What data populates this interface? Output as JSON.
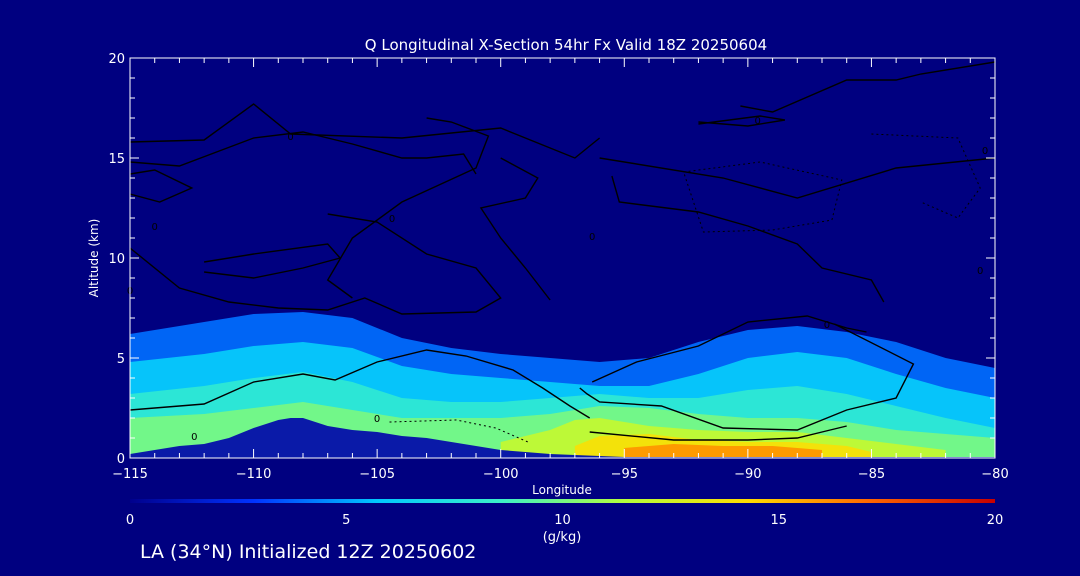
{
  "chart_data": {
    "type": "heatmap",
    "title": "Q Longitudinal X-Section 54hr  Fx Valid 18Z 20250604",
    "xlabel": "Longitude",
    "ylabel": "Altitude (km)",
    "xlim": [
      -115,
      -80
    ],
    "ylim": [
      0,
      20
    ],
    "x_ticks": [
      -115,
      -110,
      -105,
      -100,
      -95,
      -90,
      -85,
      -80
    ],
    "x_tick_labels": [
      "−115",
      "−110",
      "−105",
      "−100",
      "−95",
      "−90",
      "−85",
      "−80"
    ],
    "y_ticks": [
      0,
      5,
      10,
      15,
      20
    ],
    "y_tick_labels": [
      "0",
      "5",
      "10",
      "15",
      "20"
    ],
    "colorbar": {
      "label": "(g/kg)",
      "range": [
        0,
        20
      ],
      "ticks": [
        0,
        5,
        10,
        15,
        20
      ],
      "tick_labels": [
        "0",
        "5",
        "10",
        "15",
        "20"
      ],
      "colormap": [
        "#00008c",
        "#0032ff",
        "#00c8ff",
        "#3cf0c8",
        "#b4ff3c",
        "#ffdc00",
        "#ff6400",
        "#c80000"
      ]
    },
    "terrain": {
      "color": "#0a1aa8",
      "longitude": [
        -115,
        -114,
        -113,
        -112,
        -111,
        -110,
        -109,
        -108.5,
        -108,
        -107,
        -106,
        -105,
        -104,
        -103,
        -102,
        -101,
        -100,
        -99,
        -98,
        -97,
        -96,
        -95,
        -90,
        -85,
        -80
      ],
      "altitude_km": [
        0.2,
        0.4,
        0.6,
        0.7,
        1.0,
        1.5,
        1.9,
        2.0,
        2.0,
        1.6,
        1.4,
        1.3,
        1.1,
        1.0,
        0.8,
        0.6,
        0.4,
        0.3,
        0.2,
        0.15,
        0.1,
        0.05,
        0.05,
        0.05,
        0.05
      ]
    },
    "moisture_layers": [
      {
        "q_gkg": 4,
        "longitude": [
          -115,
          -112,
          -110,
          -108,
          -106,
          -104,
          -102,
          -100,
          -98,
          -96,
          -94,
          -92,
          -90,
          -88,
          -86,
          -84,
          -82,
          -80
        ],
        "top_km": [
          6.2,
          6.8,
          7.2,
          7.3,
          7.0,
          6.0,
          5.5,
          5.2,
          5.0,
          4.8,
          5.0,
          5.8,
          6.4,
          6.6,
          6.3,
          5.8,
          5.0,
          4.5
        ]
      },
      {
        "q_gkg": 6,
        "longitude": [
          -115,
          -112,
          -110,
          -108,
          -106,
          -104,
          -102,
          -100,
          -98,
          -96,
          -94,
          -92,
          -90,
          -88,
          -86,
          -84,
          -82,
          -80
        ],
        "top_km": [
          4.8,
          5.2,
          5.6,
          5.8,
          5.5,
          4.6,
          4.2,
          4.0,
          3.8,
          3.6,
          3.6,
          4.2,
          5.0,
          5.3,
          5.0,
          4.2,
          3.5,
          3.0
        ]
      },
      {
        "q_gkg": 8,
        "longitude": [
          -115,
          -112,
          -110,
          -108,
          -106,
          -104,
          -102,
          -100,
          -98,
          -96,
          -94,
          -92,
          -90,
          -88,
          -86,
          -84,
          -82,
          -80
        ],
        "top_km": [
          3.2,
          3.6,
          4.0,
          4.3,
          3.8,
          3.0,
          2.8,
          2.8,
          3.0,
          3.2,
          3.0,
          3.0,
          3.4,
          3.6,
          3.2,
          2.6,
          2.0,
          1.5
        ]
      },
      {
        "q_gkg": 10,
        "longitude": [
          -115,
          -112,
          -110,
          -108,
          -106,
          -104,
          -102,
          -100,
          -98,
          -96,
          -94,
          -92,
          -90,
          -88,
          -86,
          -84,
          -82,
          -80
        ],
        "top_km": [
          2.0,
          2.2,
          2.5,
          2.8,
          2.4,
          2.0,
          2.0,
          2.0,
          2.2,
          2.6,
          2.5,
          2.2,
          2.0,
          2.0,
          1.8,
          1.4,
          1.2,
          1.0
        ]
      },
      {
        "q_gkg": 12,
        "longitude": [
          -100,
          -98,
          -97,
          -96,
          -94,
          -92,
          -90,
          -88,
          -86,
          -84,
          -82
        ],
        "top_km": [
          0.8,
          1.4,
          1.9,
          2.0,
          1.6,
          1.4,
          1.3,
          1.3,
          1.0,
          0.7,
          0.4
        ]
      },
      {
        "q_gkg": 14,
        "longitude": [
          -97,
          -96,
          -94,
          -92,
          -90,
          -88,
          -86,
          -85
        ],
        "top_km": [
          0.6,
          1.1,
          1.2,
          0.9,
          0.8,
          0.8,
          0.6,
          0.3
        ]
      },
      {
        "q_gkg": 16,
        "longitude": [
          -95,
          -93,
          -91,
          -89,
          -87
        ],
        "top_km": [
          0.5,
          0.7,
          0.6,
          0.6,
          0.4
        ]
      }
    ],
    "contour_labels": [
      {
        "text": "0",
        "longitude": -108.5,
        "altitude_km": 16.1
      },
      {
        "text": "0",
        "longitude": -89.6,
        "altitude_km": 16.9
      },
      {
        "text": "0",
        "longitude": -114.0,
        "altitude_km": 11.6
      },
      {
        "text": "0",
        "longitude": -104.4,
        "altitude_km": 12.0
      },
      {
        "text": "0",
        "longitude": -96.3,
        "altitude_km": 11.1
      },
      {
        "text": "0",
        "longitude": -115.0,
        "altitude_km": 8.4
      },
      {
        "text": "0",
        "longitude": -80.6,
        "altitude_km": 9.4
      },
      {
        "text": "0",
        "longitude": -86.8,
        "altitude_km": 6.7
      },
      {
        "text": "0",
        "longitude": -105.0,
        "altitude_km": 2.0
      },
      {
        "text": "0",
        "longitude": -112.4,
        "altitude_km": 1.1
      },
      {
        "text": "0",
        "longitude": -80.4,
        "altitude_km": 15.4
      }
    ],
    "contours_solid": [
      {
        "longitude": [
          -115,
          -112,
          -110,
          -108.5,
          -104,
          -100,
          -97,
          -96
        ],
        "altitude_km": [
          15.8,
          15.9,
          17.7,
          16.2,
          16.0,
          16.5,
          15.0,
          16.0
        ]
      },
      {
        "longitude": [
          -115,
          -113,
          -110,
          -108,
          -106,
          -104,
          -103,
          -101.5,
          -101
        ],
        "altitude_km": [
          14.8,
          14.6,
          16.0,
          16.3,
          15.7,
          15.0,
          15.0,
          15.2,
          14.2
        ]
      },
      {
        "longitude": [
          -115,
          -114,
          -112.5,
          -113.8,
          -115
        ],
        "altitude_km": [
          14.2,
          14.4,
          13.5,
          12.8,
          13.2
        ]
      },
      {
        "longitude": [
          -112,
          -110,
          -107,
          -106.5,
          -108,
          -110,
          -112
        ],
        "altitude_km": [
          9.8,
          10.2,
          10.7,
          10.0,
          9.5,
          9.0,
          9.3
        ]
      },
      {
        "longitude": [
          -115,
          -113,
          -111,
          -109,
          -107,
          -105.5,
          -104,
          -101,
          -100,
          -101,
          -103,
          -105,
          -107
        ],
        "altitude_km": [
          10.5,
          8.5,
          7.8,
          7.5,
          7.4,
          8.0,
          7.2,
          7.3,
          8.0,
          9.5,
          10.2,
          11.8,
          12.2
        ]
      },
      {
        "longitude": [
          -103,
          -102,
          -100.5,
          -101,
          -104,
          -106,
          -107,
          -106
        ],
        "altitude_km": [
          17.0,
          16.8,
          16.1,
          14.5,
          12.8,
          11.0,
          8.9,
          8.0
        ]
      },
      {
        "longitude": [
          -98,
          -99,
          -100,
          -100.8,
          -99,
          -98.5,
          -100
        ],
        "altitude_km": [
          7.9,
          9.5,
          11.0,
          12.5,
          13.0,
          14.0,
          15.0
        ]
      },
      {
        "longitude": [
          -96,
          -91,
          -88,
          -84,
          -80
        ],
        "altitude_km": [
          15.0,
          14.0,
          13.0,
          14.5,
          15.0
        ]
      },
      {
        "longitude": [
          -95.5,
          -95.2,
          -92,
          -90,
          -88,
          -87,
          -85,
          -84.5
        ],
        "altitude_km": [
          14.1,
          12.8,
          12.3,
          11.6,
          10.7,
          9.5,
          8.9,
          7.8
        ]
      },
      {
        "longitude": [
          -90.3,
          -89,
          -86,
          -84,
          -83,
          -80
        ],
        "altitude_km": [
          17.6,
          17.3,
          18.9,
          18.9,
          19.2,
          19.8
        ]
      },
      {
        "longitude": [
          -92,
          -89.5,
          -88.5,
          -90,
          -92
        ],
        "altitude_km": [
          16.7,
          17.1,
          16.9,
          16.6,
          16.8
        ]
      },
      {
        "longitude": [
          -86.5,
          -83.3,
          -84,
          -86,
          -88,
          -91,
          -93.5,
          -96,
          -96.5,
          -96.8
        ],
        "altitude_km": [
          6.7,
          4.7,
          3.0,
          2.4,
          1.4,
          1.5,
          2.6,
          2.8,
          3.2,
          3.5
        ]
      },
      {
        "longitude": [
          -96.3,
          -94.5,
          -92,
          -90,
          -87.6,
          -86,
          -85.2
        ],
        "altitude_km": [
          3.8,
          4.8,
          5.6,
          6.8,
          7.1,
          6.5,
          6.3
        ]
      },
      {
        "longitude": [
          -115,
          -112,
          -110,
          -108,
          -106.7,
          -105,
          -103,
          -101.4,
          -99.5,
          -98.3,
          -97.2,
          -96.4
        ],
        "altitude_km": [
          2.4,
          2.7,
          3.8,
          4.2,
          3.9,
          4.8,
          5.4,
          5.1,
          4.4,
          3.5,
          2.6,
          2.0
        ]
      },
      {
        "longitude": [
          -96.4,
          -93,
          -90,
          -88,
          -87,
          -86
        ],
        "altitude_km": [
          1.3,
          0.9,
          0.9,
          1.0,
          1.3,
          1.6
        ]
      }
    ],
    "contours_dashed": [
      {
        "longitude": [
          -92.6,
          -89.5,
          -86.2,
          -86.6,
          -89,
          -91.8,
          -92.6
        ],
        "altitude_km": [
          14.3,
          14.8,
          13.9,
          11.9,
          11.4,
          11.3,
          14.3
        ]
      },
      {
        "longitude": [
          -85,
          -81.5,
          -80.6,
          -81.5,
          -83
        ],
        "altitude_km": [
          16.2,
          16.0,
          13.5,
          12.0,
          12.8
        ]
      },
      {
        "longitude": [
          -104.5,
          -101.8,
          -100.2,
          -98.9
        ],
        "altitude_km": [
          1.8,
          1.9,
          1.5,
          0.8
        ]
      }
    ]
  },
  "footer": "LA (34°N) Initialized 12Z 20250602"
}
